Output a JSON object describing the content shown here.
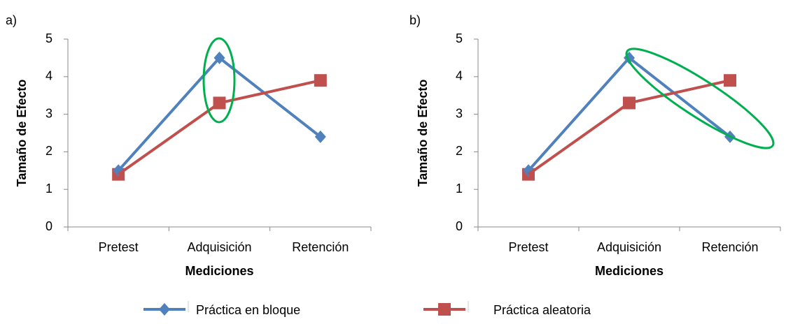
{
  "chart_data": [
    {
      "type": "line",
      "panel": "a)",
      "y_label": "Tamaño de Efecto",
      "x_label": "Mediciones",
      "categories": [
        "Pretest",
        "Adquisición",
        "Retención"
      ],
      "series": [
        {
          "name": "Práctica en bloque",
          "color": "#4f81bd",
          "marker": "diamond",
          "values": [
            1.5,
            4.5,
            2.4
          ]
        },
        {
          "name": "Práctica aleatoria",
          "color": "#c0504d",
          "marker": "square",
          "values": [
            1.4,
            3.3,
            3.9
          ]
        }
      ],
      "ylim": [
        0,
        5
      ],
      "yticks": [
        0,
        1,
        2,
        3,
        4,
        5
      ]
    },
    {
      "type": "line",
      "panel": "b)",
      "y_label": "Tamaño de Efecto",
      "x_label": "Mediciones",
      "categories": [
        "Pretest",
        "Adquisición",
        "Retención"
      ],
      "series": [
        {
          "name": "Práctica en bloque",
          "color": "#4f81bd",
          "marker": "diamond",
          "values": [
            1.5,
            4.5,
            2.4
          ]
        },
        {
          "name": "Práctica aleatoria",
          "color": "#c0504d",
          "marker": "square",
          "values": [
            1.4,
            3.3,
            3.9
          ]
        }
      ],
      "ylim": [
        0,
        5
      ],
      "yticks": [
        0,
        1,
        2,
        3,
        4,
        5
      ]
    }
  ]
}
